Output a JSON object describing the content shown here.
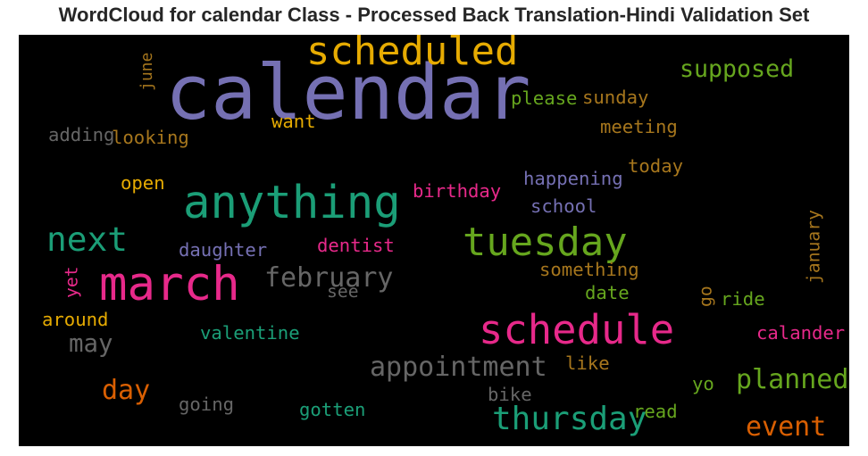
{
  "chart_data": {
    "type": "wordcloud",
    "title": "WordCloud for calendar Class - Processed Back Translation-Hindi Validation Set",
    "background": "#000000",
    "words": [
      {
        "text": "calendar",
        "weight": 1.0,
        "color": "#7570b3",
        "vertical": false
      },
      {
        "text": "scheduled",
        "weight": 0.52,
        "color": "#e6ab02",
        "vertical": false
      },
      {
        "text": "supposed",
        "weight": 0.32,
        "color": "#66a61e",
        "vertical": false
      },
      {
        "text": "june",
        "weight": 0.22,
        "color": "#a6761d",
        "vertical": true
      },
      {
        "text": "please",
        "weight": 0.25,
        "color": "#66a61e",
        "vertical": false
      },
      {
        "text": "sunday",
        "weight": 0.25,
        "color": "#a6761d",
        "vertical": false
      },
      {
        "text": "want",
        "weight": 0.25,
        "color": "#e6ab02",
        "vertical": false
      },
      {
        "text": "adding",
        "weight": 0.25,
        "color": "#666666",
        "vertical": false
      },
      {
        "text": "looking",
        "weight": 0.25,
        "color": "#a6761d",
        "vertical": false
      },
      {
        "text": "meeting",
        "weight": 0.25,
        "color": "#a6761d",
        "vertical": false
      },
      {
        "text": "today",
        "weight": 0.25,
        "color": "#a6761d",
        "vertical": false
      },
      {
        "text": "open",
        "weight": 0.25,
        "color": "#e6ab02",
        "vertical": false
      },
      {
        "text": "anything",
        "weight": 0.6,
        "color": "#1b9e77",
        "vertical": false
      },
      {
        "text": "happening",
        "weight": 0.25,
        "color": "#7570b3",
        "vertical": false
      },
      {
        "text": "birthday",
        "weight": 0.25,
        "color": "#e7298a",
        "vertical": false
      },
      {
        "text": "school",
        "weight": 0.25,
        "color": "#7570b3",
        "vertical": false
      },
      {
        "text": "next",
        "weight": 0.45,
        "color": "#1b9e77",
        "vertical": false
      },
      {
        "text": "tuesday",
        "weight": 0.52,
        "color": "#66a61e",
        "vertical": false
      },
      {
        "text": "january",
        "weight": 0.24,
        "color": "#a6761d",
        "vertical": true
      },
      {
        "text": "daughter",
        "weight": 0.25,
        "color": "#7570b3",
        "vertical": false
      },
      {
        "text": "dentist",
        "weight": 0.25,
        "color": "#e7298a",
        "vertical": false
      },
      {
        "text": "march",
        "weight": 0.62,
        "color": "#e7298a",
        "vertical": false
      },
      {
        "text": "february",
        "weight": 0.36,
        "color": "#666666",
        "vertical": false
      },
      {
        "text": "something",
        "weight": 0.25,
        "color": "#a6761d",
        "vertical": false
      },
      {
        "text": "yet",
        "weight": 0.24,
        "color": "#e7298a",
        "vertical": true
      },
      {
        "text": "see",
        "weight": 0.24,
        "color": "#666666",
        "vertical": false
      },
      {
        "text": "date",
        "weight": 0.25,
        "color": "#66a61e",
        "vertical": false
      },
      {
        "text": "go",
        "weight": 0.24,
        "color": "#a6761d",
        "vertical": true
      },
      {
        "text": "ride",
        "weight": 0.25,
        "color": "#66a61e",
        "vertical": false
      },
      {
        "text": "around",
        "weight": 0.25,
        "color": "#e6ab02",
        "vertical": false
      },
      {
        "text": "schedule",
        "weight": 0.54,
        "color": "#e7298a",
        "vertical": false
      },
      {
        "text": "may",
        "weight": 0.33,
        "color": "#666666",
        "vertical": false
      },
      {
        "text": "valentine",
        "weight": 0.25,
        "color": "#1b9e77",
        "vertical": false
      },
      {
        "text": "calander",
        "weight": 0.25,
        "color": "#e7298a",
        "vertical": false
      },
      {
        "text": "appointment",
        "weight": 0.36,
        "color": "#666666",
        "vertical": false
      },
      {
        "text": "like",
        "weight": 0.25,
        "color": "#a6761d",
        "vertical": false
      },
      {
        "text": "planned",
        "weight": 0.36,
        "color": "#66a61e",
        "vertical": false
      },
      {
        "text": "day",
        "weight": 0.36,
        "color": "#d95f02",
        "vertical": false
      },
      {
        "text": "yo",
        "weight": 0.25,
        "color": "#66a61e",
        "vertical": false
      },
      {
        "text": "bike",
        "weight": 0.25,
        "color": "#666666",
        "vertical": false
      },
      {
        "text": "going",
        "weight": 0.25,
        "color": "#666666",
        "vertical": false
      },
      {
        "text": "thursday",
        "weight": 0.43,
        "color": "#1b9e77",
        "vertical": false
      },
      {
        "text": "read",
        "weight": 0.25,
        "color": "#66a61e",
        "vertical": false
      },
      {
        "text": "gotten",
        "weight": 0.25,
        "color": "#1b9e77",
        "vertical": false
      },
      {
        "text": "event",
        "weight": 0.36,
        "color": "#d95f02",
        "vertical": false
      }
    ]
  }
}
